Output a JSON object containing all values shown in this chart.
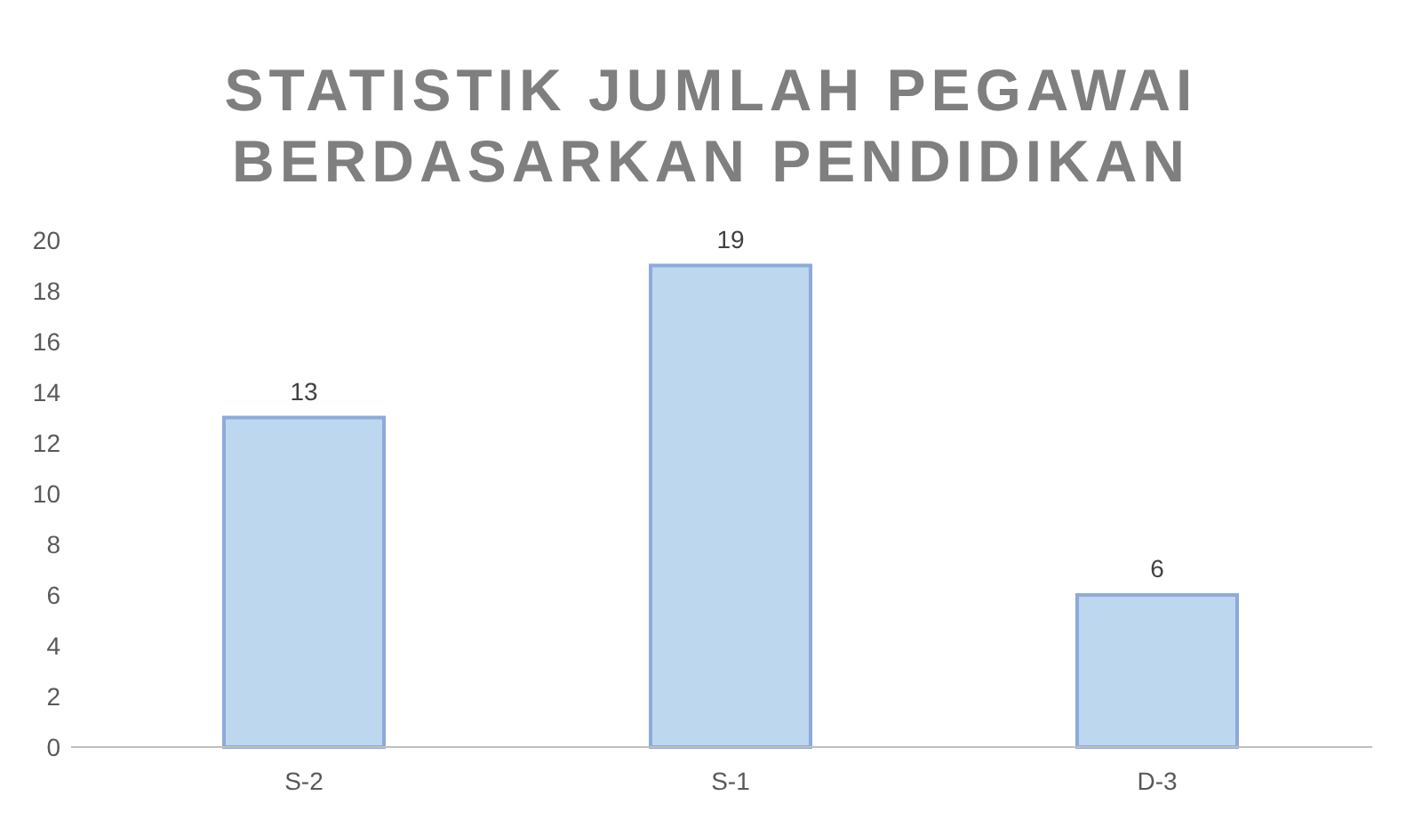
{
  "chart_data": {
    "type": "bar",
    "title": "STATISTIK JUMLAH PEGAWAI BERDASARKAN PENDIDIKAN",
    "categories": [
      "S-2",
      "S-1",
      "D-3"
    ],
    "values": [
      13,
      19,
      6
    ],
    "color": "#bdd7ee",
    "ylim": [
      0,
      20
    ],
    "yticks": [
      0,
      2,
      4,
      6,
      8,
      10,
      12,
      14,
      16,
      18,
      20
    ],
    "data_labels": true,
    "grid": false
  }
}
